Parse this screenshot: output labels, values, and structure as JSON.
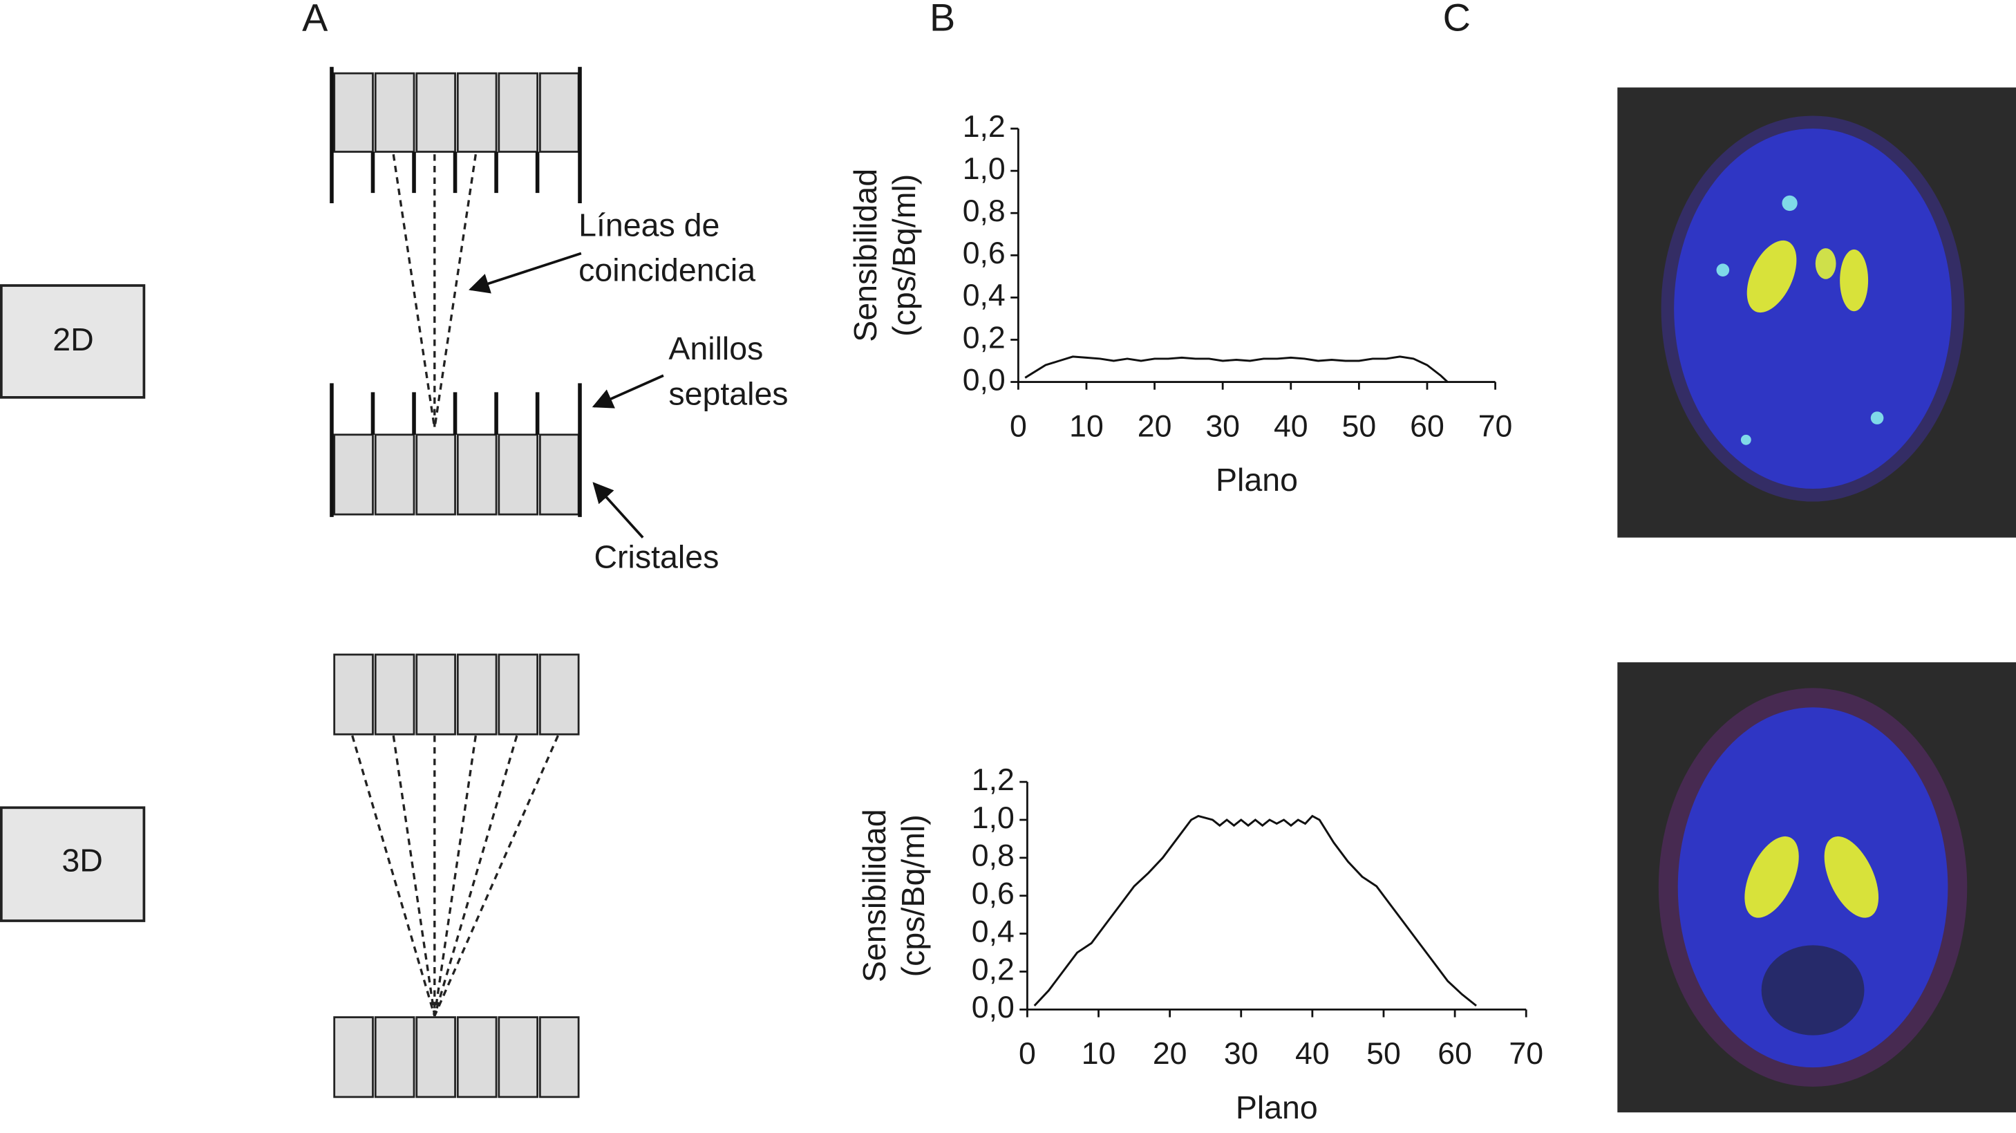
{
  "panels": [
    "A",
    "B",
    "C"
  ],
  "modes": [
    "2D",
    "3D"
  ],
  "annotations": {
    "coincidence": [
      "Líneas de",
      "coincidencia"
    ],
    "septa": [
      "Anillos",
      "septales"
    ],
    "crystals": "Cristales"
  },
  "chart_data": [
    {
      "type": "line",
      "x_label": "Plano",
      "y_label": [
        "Sensibilidad",
        "(cps/Bq/ml)"
      ],
      "xlim": [
        0,
        70
      ],
      "xticks": [
        0,
        10,
        20,
        30,
        40,
        50,
        60,
        70
      ],
      "ylim": [
        0,
        1.2
      ],
      "yticks": [
        {
          "value": 0,
          "label": "0,0"
        },
        {
          "value": 0.2,
          "label": "0,2"
        },
        {
          "value": 0.4,
          "label": "0,4"
        },
        {
          "value": 0.6,
          "label": "0,6"
        },
        {
          "value": 0.8,
          "label": "0,8"
        },
        {
          "value": 1.0,
          "label": "1,0"
        },
        {
          "value": 1.2,
          "label": "1,2"
        }
      ],
      "color": "#111111",
      "x": [
        1,
        2,
        4,
        6,
        8,
        10,
        12,
        14,
        16,
        18,
        20,
        22,
        24,
        26,
        28,
        30,
        32,
        34,
        36,
        38,
        40,
        42,
        44,
        46,
        48,
        50,
        52,
        54,
        56,
        58,
        60,
        62,
        63
      ],
      "values": [
        0.02,
        0.04,
        0.08,
        0.1,
        0.12,
        0.115,
        0.11,
        0.1,
        0.11,
        0.1,
        0.11,
        0.11,
        0.115,
        0.11,
        0.11,
        0.1,
        0.105,
        0.1,
        0.11,
        0.11,
        0.115,
        0.11,
        0.1,
        0.105,
        0.1,
        0.1,
        0.11,
        0.11,
        0.12,
        0.11,
        0.08,
        0.03,
        0
      ]
    },
    {
      "type": "line",
      "x_label": "Plano",
      "y_label": [
        "Sensibilidad",
        "(cps/Bq/ml)"
      ],
      "xlim": [
        0,
        70
      ],
      "xticks": [
        0,
        10,
        20,
        30,
        40,
        50,
        60,
        70
      ],
      "ylim": [
        0,
        1.2
      ],
      "yticks": [
        {
          "value": 0,
          "label": "0,0"
        },
        {
          "value": 0.2,
          "label": "0,2"
        },
        {
          "value": 0.4,
          "label": "0,4"
        },
        {
          "value": 0.6,
          "label": "0,6"
        },
        {
          "value": 0.8,
          "label": "0,8"
        },
        {
          "value": 1.0,
          "label": "1,0"
        },
        {
          "value": 1.2,
          "label": "1,2"
        }
      ],
      "color": "#111111",
      "x": [
        1,
        3,
        5,
        7,
        9,
        11,
        13,
        15,
        17,
        19,
        21,
        23,
        24,
        25,
        26,
        27,
        28,
        29,
        30,
        31,
        32,
        33,
        34,
        35,
        36,
        37,
        38,
        39,
        40,
        41,
        43,
        45,
        47,
        49,
        51,
        53,
        55,
        57,
        59,
        61,
        63
      ],
      "values": [
        0.02,
        0.1,
        0.2,
        0.3,
        0.35,
        0.45,
        0.55,
        0.65,
        0.72,
        0.8,
        0.9,
        1.0,
        1.02,
        1.01,
        1.0,
        0.97,
        1.0,
        0.97,
        1.0,
        0.97,
        1.0,
        0.97,
        1.0,
        0.98,
        1.0,
        0.97,
        1.0,
        0.98,
        1.02,
        1.0,
        0.88,
        0.78,
        0.7,
        0.65,
        0.55,
        0.45,
        0.35,
        0.25,
        0.15,
        0.08,
        0.02
      ]
    }
  ]
}
